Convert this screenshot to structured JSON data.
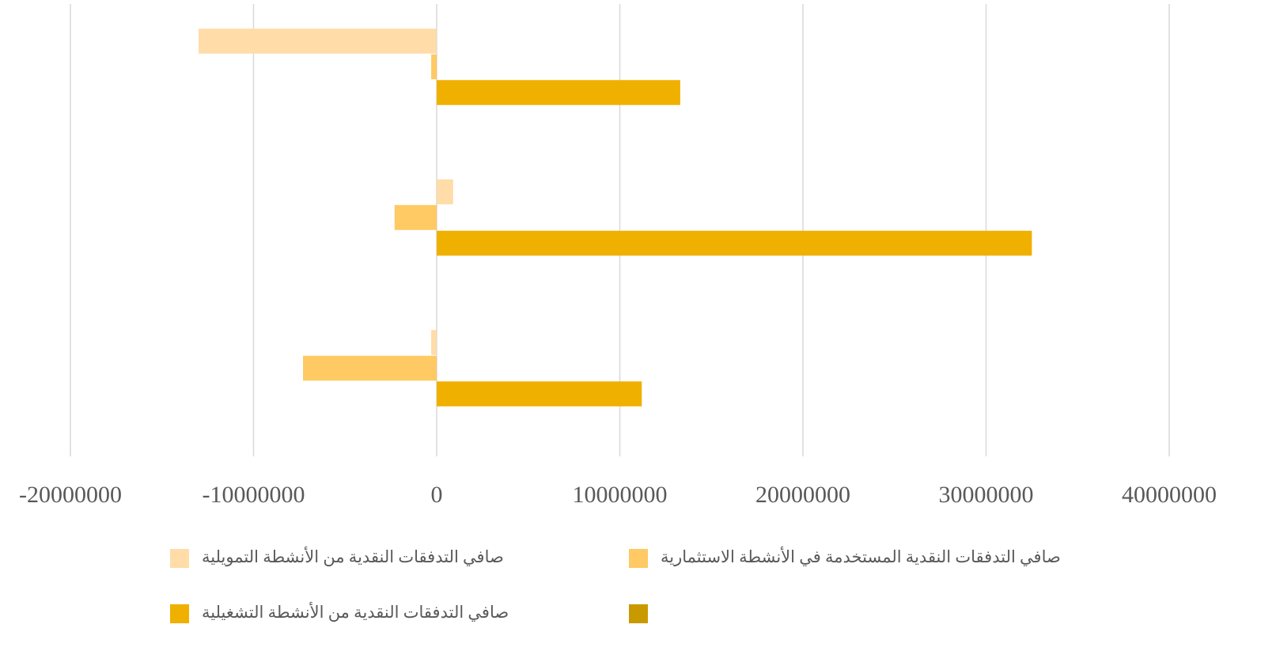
{
  "chart_data": {
    "type": "bar",
    "orientation": "horizontal",
    "categories": [
      null,
      null,
      null
    ],
    "series": [
      {
        "name": "صافي التدفقات النقدية من الأنشطة التمويلية",
        "color": "#ffdca8",
        "values": [
          -13000000,
          900000,
          -300000
        ]
      },
      {
        "name": "صافي التدفقات النقدية المستخدمة في الأنشطة الاستثمارية",
        "color": "#ffc964",
        "values": [
          -300000,
          -2300000,
          -7300000
        ]
      },
      {
        "name": "صافي التدفقات النقدية من الأنشطة التشغيلية",
        "color": "#f0b000",
        "values": [
          13300000,
          32500000,
          11200000
        ]
      },
      {
        "color": "#c99a00",
        "values": [
          null,
          null,
          null
        ]
      }
    ],
    "xlim": [
      -20000000,
      40000000
    ],
    "xticks": [
      -20000000,
      -10000000,
      0,
      10000000,
      20000000,
      30000000,
      40000000
    ],
    "grid": true,
    "legend": "bottom"
  }
}
